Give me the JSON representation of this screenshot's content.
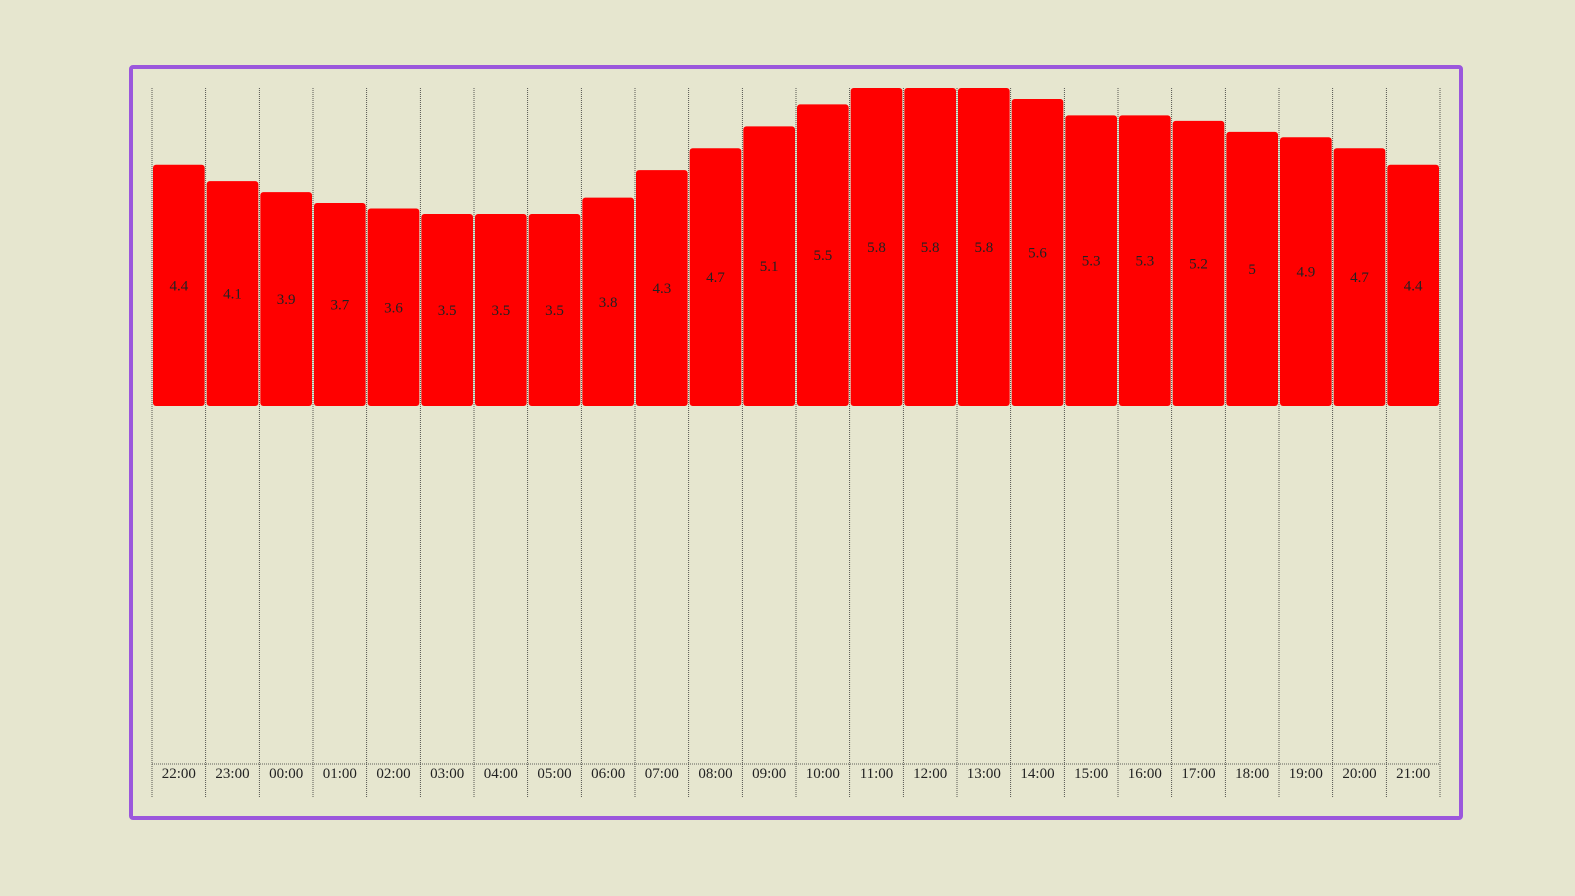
{
  "chart_data": {
    "type": "bar",
    "categories": [
      "22:00",
      "23:00",
      "00:00",
      "01:00",
      "02:00",
      "03:00",
      "04:00",
      "05:00",
      "06:00",
      "07:00",
      "08:00",
      "09:00",
      "10:00",
      "11:00",
      "12:00",
      "13:00",
      "14:00",
      "15:00",
      "16:00",
      "17:00",
      "18:00",
      "19:00",
      "20:00",
      "21:00"
    ],
    "values": [
      4.4,
      4.1,
      3.9,
      3.7,
      3.6,
      3.5,
      3.5,
      3.5,
      3.8,
      4.3,
      4.7,
      5.1,
      5.5,
      5.8,
      5.8,
      5.8,
      5.6,
      5.3,
      5.3,
      5.2,
      5,
      4.9,
      4.7,
      4.4
    ],
    "value_labels": [
      "4.4",
      "4.1",
      "3.9",
      "3.7",
      "3.6",
      "3.5",
      "3.5",
      "3.5",
      "3.8",
      "4.3",
      "4.7",
      "5.1",
      "5.5",
      "5.8",
      "5.8",
      "5.8",
      "5.6",
      "5.3",
      "5.3",
      "5.2",
      "5",
      "4.9",
      "4.7",
      "4.4"
    ],
    "bar_baseline_value": 0,
    "ylim": [
      0,
      5.8
    ],
    "grid": "vertical dotted",
    "title": "",
    "xlabel": "",
    "ylabel": "",
    "colors": {
      "bar": "#ff0000",
      "frame": "#9b57dc",
      "background": "#e6e6cf",
      "grid": "#333333",
      "text": "#222222"
    }
  }
}
